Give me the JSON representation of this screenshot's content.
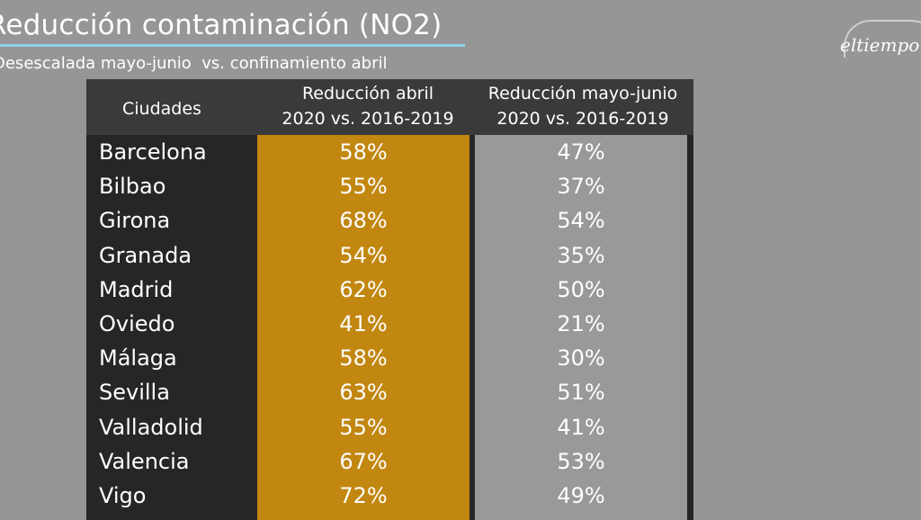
{
  "header": {
    "title": "Reducción contaminación (NO2)",
    "subtitle": "Desescalada mayo-junio  vs. confinamiento abril"
  },
  "logo": {
    "text": "eltiempo"
  },
  "colors": {
    "background": "#969696",
    "table": "#262626",
    "april_column": "#c28710",
    "may_column": "#999999",
    "title_underline": "#8fd0e8"
  },
  "chart_data": {
    "type": "table",
    "title": "Reducción contaminación (NO2)",
    "subtitle": "Desescalada mayo-junio  vs. confinamiento abril",
    "columns": [
      {
        "label": "Ciudades"
      },
      {
        "label_line1": "Reducción abril",
        "label_line2": "2020 vs. 2016-2019"
      },
      {
        "label_line1": "Reducción mayo-junio",
        "label_line2": "2020 vs. 2016-2019"
      }
    ],
    "rows": [
      {
        "city": "Barcelona",
        "april": "58%",
        "may_june": "47%"
      },
      {
        "city": "Bilbao",
        "april": "55%",
        "may_june": "37%"
      },
      {
        "city": "Girona",
        "april": "68%",
        "may_june": "54%"
      },
      {
        "city": "Granada",
        "april": "54%",
        "may_june": "35%"
      },
      {
        "city": "Madrid",
        "april": "62%",
        "may_june": "50%"
      },
      {
        "city": "Oviedo",
        "april": "41%",
        "may_june": "21%"
      },
      {
        "city": "Málaga",
        "april": "58%",
        "may_june": "30%"
      },
      {
        "city": "Sevilla",
        "april": "63%",
        "may_june": "51%"
      },
      {
        "city": "Valladolid",
        "april": "55%",
        "may_june": "41%"
      },
      {
        "city": "Valencia",
        "april": "67%",
        "may_june": "53%"
      },
      {
        "city": "Vigo",
        "april": "72%",
        "may_june": "49%"
      }
    ]
  }
}
